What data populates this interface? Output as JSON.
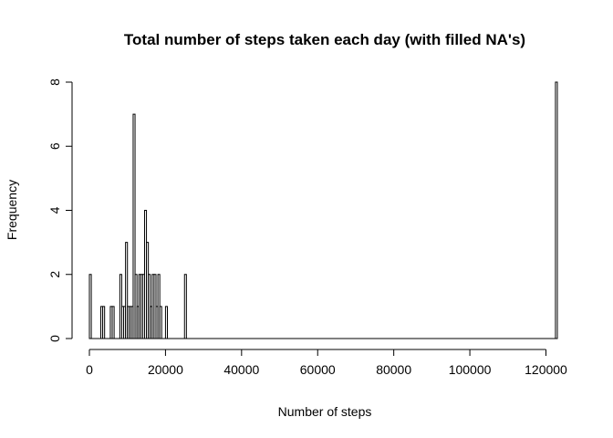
{
  "chart_data": {
    "type": "bar",
    "title": "Total number of steps taken each day (with filled NA's)",
    "xlabel": "Number of steps",
    "ylabel": "Frequency",
    "xlim": [
      0,
      123000
    ],
    "ylim": [
      0,
      8
    ],
    "bin_width": 500,
    "xticks": [
      0,
      20000,
      40000,
      60000,
      80000,
      100000,
      120000
    ],
    "yticks": [
      0,
      2,
      4,
      6,
      8
    ],
    "grid": false,
    "bins": [
      {
        "x0": 0,
        "x1": 500,
        "count": 2
      },
      {
        "x0": 3000,
        "x1": 3500,
        "count": 1
      },
      {
        "x0": 3500,
        "x1": 4000,
        "count": 1
      },
      {
        "x0": 5000,
        "x1": 5500,
        "count": 0
      },
      {
        "x0": 5500,
        "x1": 6000,
        "count": 1
      },
      {
        "x0": 6000,
        "x1": 6500,
        "count": 1
      },
      {
        "x0": 8000,
        "x1": 8500,
        "count": 2
      },
      {
        "x0": 8500,
        "x1": 9000,
        "count": 1
      },
      {
        "x0": 9000,
        "x1": 9500,
        "count": 1
      },
      {
        "x0": 9500,
        "x1": 10000,
        "count": 3
      },
      {
        "x0": 10000,
        "x1": 10500,
        "count": 1
      },
      {
        "x0": 10500,
        "x1": 11000,
        "count": 1
      },
      {
        "x0": 11000,
        "x1": 11500,
        "count": 1
      },
      {
        "x0": 11500,
        "x1": 12000,
        "count": 7
      },
      {
        "x0": 12000,
        "x1": 12500,
        "count": 2
      },
      {
        "x0": 12500,
        "x1": 13000,
        "count": 1
      },
      {
        "x0": 13000,
        "x1": 13500,
        "count": 2
      },
      {
        "x0": 13500,
        "x1": 14000,
        "count": 2
      },
      {
        "x0": 14000,
        "x1": 14500,
        "count": 2
      },
      {
        "x0": 14500,
        "x1": 15000,
        "count": 4
      },
      {
        "x0": 15000,
        "x1": 15500,
        "count": 3
      },
      {
        "x0": 15500,
        "x1": 16000,
        "count": 2
      },
      {
        "x0": 16000,
        "x1": 16500,
        "count": 1
      },
      {
        "x0": 16500,
        "x1": 17000,
        "count": 2
      },
      {
        "x0": 17000,
        "x1": 17500,
        "count": 2
      },
      {
        "x0": 17500,
        "x1": 18000,
        "count": 1
      },
      {
        "x0": 18000,
        "x1": 18500,
        "count": 2
      },
      {
        "x0": 18500,
        "x1": 19000,
        "count": 1
      },
      {
        "x0": 20000,
        "x1": 20500,
        "count": 1
      },
      {
        "x0": 25000,
        "x1": 25500,
        "count": 2
      },
      {
        "x0": 122500,
        "x1": 123000,
        "count": 8
      }
    ]
  }
}
